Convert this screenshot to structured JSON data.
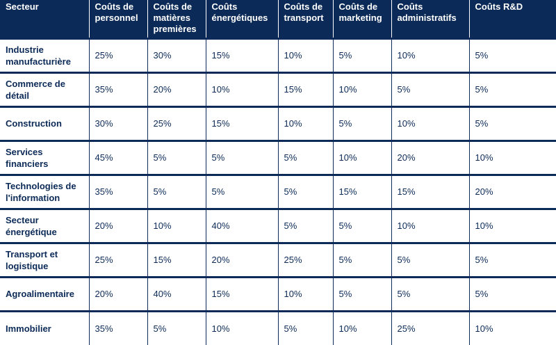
{
  "headers": [
    "Secteur",
    "Coûts de personnel",
    "Coûts de matières premières",
    "Coûts énergétiques",
    "Coûts de transport",
    "Coûts de marketing",
    "Coûts administratifs",
    "Coûts R&D"
  ],
  "rows": [
    [
      "Industrie manufacturière",
      "25%",
      "30%",
      "15%",
      "10%",
      "5%",
      "10%",
      "5%"
    ],
    [
      "Commerce de détail",
      "35%",
      "20%",
      "10%",
      "15%",
      "10%",
      "5%",
      "5%"
    ],
    [
      "Construction",
      "30%",
      "25%",
      "15%",
      "10%",
      "5%",
      "10%",
      "5%"
    ],
    [
      "Services financiers",
      "45%",
      "5%",
      "5%",
      "5%",
      "10%",
      "20%",
      "10%"
    ],
    [
      "Technologies de l'information",
      "35%",
      "5%",
      "5%",
      "5%",
      "15%",
      "15%",
      "20%"
    ],
    [
      "Secteur énergétique",
      "20%",
      "10%",
      "40%",
      "5%",
      "5%",
      "10%",
      "10%"
    ],
    [
      "Transport et logistique",
      "25%",
      "15%",
      "20%",
      "25%",
      "5%",
      "5%",
      "5%"
    ],
    [
      "Agroalimentaire",
      "20%",
      "40%",
      "15%",
      "10%",
      "5%",
      "5%",
      "5%"
    ],
    [
      "Immobilier",
      "35%",
      "5%",
      "10%",
      "5%",
      "10%",
      "25%",
      "10%"
    ]
  ],
  "chart_data": {
    "type": "table",
    "columns": [
      "Secteur",
      "Coûts de personnel",
      "Coûts de matières premières",
      "Coûts énergétiques",
      "Coûts de transport",
      "Coûts de marketing",
      "Coûts administratifs",
      "Coûts R&D"
    ],
    "rows": [
      [
        "Industrie manufacturière",
        25,
        30,
        15,
        10,
        5,
        10,
        5
      ],
      [
        "Commerce de détail",
        35,
        20,
        10,
        15,
        10,
        5,
        5
      ],
      [
        "Construction",
        30,
        25,
        15,
        10,
        5,
        10,
        5
      ],
      [
        "Services financiers",
        45,
        5,
        5,
        5,
        10,
        20,
        10
      ],
      [
        "Technologies de l'information",
        35,
        5,
        5,
        5,
        15,
        15,
        20
      ],
      [
        "Secteur énergétique",
        20,
        10,
        40,
        5,
        5,
        10,
        10
      ],
      [
        "Transport et logistique",
        25,
        15,
        20,
        25,
        5,
        5,
        5
      ],
      [
        "Agroalimentaire",
        20,
        40,
        15,
        10,
        5,
        5,
        5
      ],
      [
        "Immobilier",
        35,
        5,
        10,
        5,
        10,
        25,
        10
      ]
    ]
  }
}
